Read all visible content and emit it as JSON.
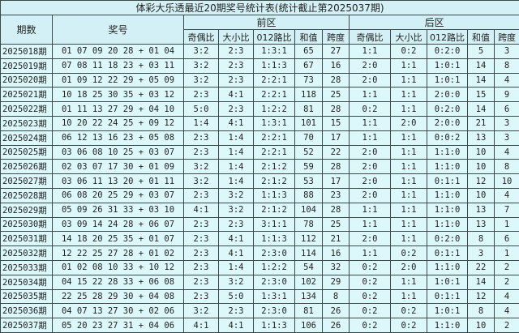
{
  "title": "体彩大乐透最近20期奖号统计表(统计截止第2025037期)",
  "headers": {
    "period": "期数",
    "numbers": "奖号",
    "front": "前区",
    "back": "后区",
    "sub": [
      "奇偶比",
      "大小比",
      "012路比",
      "和值",
      "跨度",
      "奇偶比",
      "大小比",
      "012路比",
      "和值",
      "跨度"
    ]
  },
  "rows": [
    [
      "2025018期",
      "01 07 09 20 28 + 01 04",
      "3:2",
      "2:3",
      "1:3:1",
      "65",
      "27",
      "1:1",
      "0:2",
      "0:2:0",
      "5",
      "3"
    ],
    [
      "2025019期",
      "07 08 11 18 23 + 03 11",
      "3:2",
      "2:3",
      "1:1:3",
      "67",
      "16",
      "2:0",
      "1:1",
      "1:0:1",
      "14",
      "8"
    ],
    [
      "2025020期",
      "01 09 12 22 29 + 05 09",
      "3:2",
      "2:3",
      "2:2:1",
      "73",
      "28",
      "2:0",
      "1:1",
      "1:0:1",
      "14",
      "4"
    ],
    [
      "2025021期",
      "10 18 25 30 35 + 03 12",
      "2:3",
      "4:1",
      "2:2:1",
      "118",
      "25",
      "1:1",
      "1:1",
      "2:0:0",
      "15",
      "9"
    ],
    [
      "2025022期",
      "01 11 13 27 29 + 04 10",
      "5:0",
      "2:3",
      "1:2:2",
      "81",
      "28",
      "0:2",
      "1:1",
      "0:2:0",
      "14",
      "6"
    ],
    [
      "2025023期",
      "10 20 22 24 25 + 09 12",
      "1:4",
      "4:1",
      "1:3:1",
      "101",
      "15",
      "1:1",
      "2:0",
      "2:0:0",
      "21",
      "3"
    ],
    [
      "2025024期",
      "06 12 13 16 23 + 05 08",
      "2:3",
      "1:4",
      "2:2:1",
      "70",
      "17",
      "1:1",
      "1:1",
      "0:0:2",
      "13",
      "3"
    ],
    [
      "2025025期",
      "03 06 08 10 25 + 03 07",
      "2:3",
      "1:4",
      "2:2:1",
      "52",
      "22",
      "2:0",
      "1:1",
      "1:1:0",
      "10",
      "4"
    ],
    [
      "2025026期",
      "02 03 07 17 30 + 01 09",
      "3:2",
      "1:4",
      "2:1:2",
      "59",
      "28",
      "2:0",
      "1:1",
      "1:1:0",
      "10",
      "8"
    ],
    [
      "2025027期",
      "03 06 11 13 20 + 01 11",
      "3:2",
      "1:4",
      "2:1:2",
      "53",
      "17",
      "2:0",
      "1:1",
      "0:1:1",
      "12",
      "10"
    ],
    [
      "2025028期",
      "06 08 20 25 29 + 03 07",
      "2:3",
      "3:2",
      "1:1:3",
      "88",
      "23",
      "2:0",
      "1:1",
      "1:1:0",
      "10",
      "4"
    ],
    [
      "2025029期",
      "05 09 26 31 33 + 03 10",
      "4:1",
      "3:2",
      "2:1:2",
      "104",
      "28",
      "1:1",
      "1:1",
      "1:1:0",
      "13",
      "7"
    ],
    [
      "2025030期",
      "03 09 14 24 28 + 06 07",
      "2:3",
      "2:3",
      "3:1:1",
      "78",
      "25",
      "1:1",
      "1:1",
      "1:1:0",
      "13",
      "1"
    ],
    [
      "2025031期",
      "14 18 20 25 35 + 01 07",
      "2:3",
      "4:1",
      "1:1:3",
      "112",
      "21",
      "2:0",
      "1:1",
      "0:2:0",
      "8",
      "6"
    ],
    [
      "2025032期",
      "12 22 25 27 28 + 01 02",
      "2:3",
      "4:1",
      "2:3:0",
      "114",
      "16",
      "1:1",
      "0:2",
      "0:1:1",
      "3",
      "1"
    ],
    [
      "2025033期",
      "01 02 08 10 33 + 10 12",
      "2:3",
      "1:4",
      "1:2:2",
      "54",
      "32",
      "0:2",
      "2:0",
      "1:1:0",
      "22",
      "2"
    ],
    [
      "2025034期",
      "04 15 22 28 33 + 06 08",
      "2:3",
      "3:2",
      "2:3:0",
      "102",
      "29",
      "0:2",
      "1:1",
      "1:0:1",
      "14",
      "2"
    ],
    [
      "2025035期",
      "22 25 28 29 30 + 04 08",
      "2:3",
      "5:0",
      "1:3:1",
      "134",
      "8",
      "0:2",
      "1:1",
      "0:1:1",
      "12",
      "4"
    ],
    [
      "2025036期",
      "04 07 13 27 30 + 02 06",
      "3:2",
      "2:3",
      "2:3:0",
      "81",
      "26",
      "0:2",
      "0:2",
      "1:0:1",
      "8",
      "4"
    ],
    [
      "2025037期",
      "05 20 23 27 31 + 04 06",
      "4:1",
      "4:1",
      "1:1:3",
      "106",
      "26",
      "0:2",
      "0:2",
      "1:1:0",
      "10",
      "2"
    ]
  ]
}
